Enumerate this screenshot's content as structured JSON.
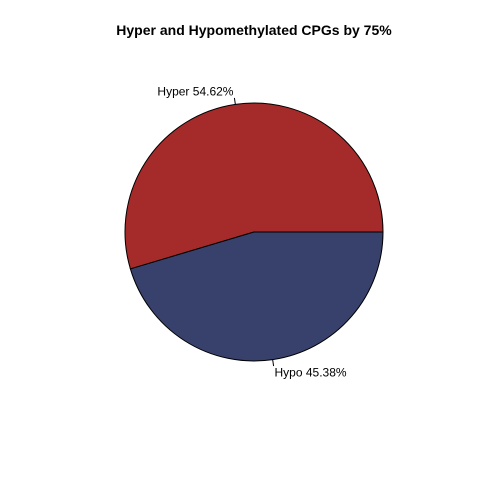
{
  "chart_data": {
    "type": "pie",
    "title": "Hyper and Hypomethylated CPGs by 75%",
    "slices": [
      {
        "name": "Hyper",
        "value": 54.62,
        "label": "Hyper 54.62%",
        "color": "#A52A2A"
      },
      {
        "name": "Hypo",
        "value": 45.38,
        "label": "Hypo 45.38%",
        "color": "#37416B"
      }
    ],
    "start": "3 o'clock",
    "direction": "counter-clockwise"
  }
}
